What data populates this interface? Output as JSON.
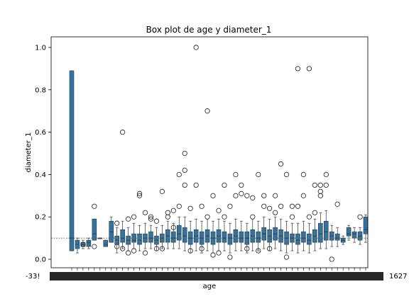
{
  "chart_data": {
    "type": "box",
    "title": "Box plot de age y diameter_1",
    "xlabel": "age",
    "ylabel": "diameter_1",
    "ylim": [
      -0.04,
      1.05
    ],
    "y_ticks": [
      "0.0",
      "0.2",
      "0.4",
      "0.6",
      "0.8",
      "1.0"
    ],
    "y_tick_values": [
      0.0,
      0.2,
      0.4,
      0.6,
      0.8,
      1.0
    ],
    "x_tick_label_first": "-33!",
    "x_tick_label_last": "1627",
    "grid": false,
    "box_color": "#3274a1",
    "reference_line_y": 0.1,
    "boxes": [
      {
        "q1": 0.04,
        "median": 0.1,
        "q3": 0.89,
        "low": 0.04,
        "high": 0.89,
        "outliers": []
      },
      {
        "q1": 0.05,
        "median": 0.07,
        "q3": 0.09,
        "low": 0.03,
        "high": 0.1,
        "outliers": []
      },
      {
        "q1": 0.06,
        "median": 0.07,
        "q3": 0.08,
        "low": 0.05,
        "high": 0.09,
        "outliers": [
          0.07
        ]
      },
      {
        "q1": 0.06,
        "median": 0.08,
        "q3": 0.09,
        "low": 0.05,
        "high": 0.1,
        "outliers": []
      },
      {
        "q1": 0.09,
        "median": 0.12,
        "q3": 0.19,
        "low": 0.09,
        "high": 0.19,
        "outliers": [
          0.25,
          0.06
        ]
      },
      {
        "q1": 0.1,
        "median": 0.1,
        "q3": 0.1,
        "low": 0.1,
        "high": 0.1,
        "outliers": []
      },
      {
        "q1": 0.06,
        "median": 0.07,
        "q3": 0.09,
        "low": 0.06,
        "high": 0.09,
        "outliers": []
      },
      {
        "q1": 0.08,
        "median": 0.13,
        "q3": 0.18,
        "low": 0.08,
        "high": 0.2,
        "outliers": []
      },
      {
        "q1": 0.07,
        "median": 0.09,
        "q3": 0.11,
        "low": 0.03,
        "high": 0.15,
        "outliers": [
          0.17,
          0.06
        ]
      },
      {
        "q1": 0.08,
        "median": 0.1,
        "q3": 0.14,
        "low": 0.05,
        "high": 0.18,
        "outliers": [
          0.6,
          0.05
        ]
      },
      {
        "q1": 0.07,
        "median": 0.09,
        "q3": 0.11,
        "low": 0.04,
        "high": 0.15,
        "outliers": [
          0.19,
          0.03
        ]
      },
      {
        "q1": 0.08,
        "median": 0.09,
        "q3": 0.12,
        "low": 0.05,
        "high": 0.17,
        "outliers": [
          0.2,
          0.04
        ]
      },
      {
        "q1": 0.07,
        "median": 0.09,
        "q3": 0.12,
        "low": 0.04,
        "high": 0.16,
        "outliers": [
          0.31,
          0.3
        ]
      },
      {
        "q1": 0.08,
        "median": 0.1,
        "q3": 0.12,
        "low": 0.05,
        "high": 0.17,
        "outliers": [
          0.22,
          0.03
        ]
      },
      {
        "q1": 0.08,
        "median": 0.1,
        "q3": 0.13,
        "low": 0.05,
        "high": 0.16,
        "outliers": [
          0.19,
          0.2
        ]
      },
      {
        "q1": 0.07,
        "median": 0.09,
        "q3": 0.11,
        "low": 0.04,
        "high": 0.15,
        "outliers": [
          0.18,
          0.05
        ]
      },
      {
        "q1": 0.08,
        "median": 0.1,
        "q3": 0.12,
        "low": 0.05,
        "high": 0.16,
        "outliers": [
          0.32,
          0.05
        ]
      },
      {
        "q1": 0.08,
        "median": 0.11,
        "q3": 0.14,
        "low": 0.05,
        "high": 0.18,
        "outliers": [
          0.22,
          0.2
        ]
      },
      {
        "q1": 0.08,
        "median": 0.1,
        "q3": 0.13,
        "low": 0.05,
        "high": 0.17,
        "outliers": [
          0.23,
          0.15
        ]
      },
      {
        "q1": 0.09,
        "median": 0.12,
        "q3": 0.16,
        "low": 0.05,
        "high": 0.2,
        "outliers": [
          0.4,
          0.25
        ]
      },
      {
        "q1": 0.08,
        "median": 0.11,
        "q3": 0.15,
        "low": 0.04,
        "high": 0.2,
        "outliers": [
          0.5,
          0.42,
          0.35
        ]
      },
      {
        "q1": 0.07,
        "median": 0.1,
        "q3": 0.13,
        "low": 0.03,
        "high": 0.18,
        "outliers": [
          0.24,
          0.04
        ]
      },
      {
        "q1": 0.08,
        "median": 0.11,
        "q3": 0.14,
        "low": 0.04,
        "high": 0.19,
        "outliers": [
          1.0,
          0.35
        ]
      },
      {
        "q1": 0.07,
        "median": 0.1,
        "q3": 0.13,
        "low": 0.03,
        "high": 0.18,
        "outliers": [
          0.25,
          0.05
        ]
      },
      {
        "q1": 0.08,
        "median": 0.11,
        "q3": 0.14,
        "low": 0.04,
        "high": 0.19,
        "outliers": [
          0.7,
          0.2
        ]
      },
      {
        "q1": 0.07,
        "median": 0.1,
        "q3": 0.13,
        "low": 0.03,
        "high": 0.18,
        "outliers": [
          0.3,
          0.02
        ]
      },
      {
        "q1": 0.08,
        "median": 0.11,
        "q3": 0.14,
        "low": 0.04,
        "high": 0.19,
        "outliers": [
          0.23,
          0.03
        ]
      },
      {
        "q1": 0.08,
        "median": 0.1,
        "q3": 0.13,
        "low": 0.04,
        "high": 0.18,
        "outliers": [
          0.35,
          0.2
        ]
      },
      {
        "q1": 0.07,
        "median": 0.1,
        "q3": 0.12,
        "low": 0.03,
        "high": 0.17,
        "outliers": [
          0.25,
          0.01
        ]
      },
      {
        "q1": 0.08,
        "median": 0.11,
        "q3": 0.14,
        "low": 0.04,
        "high": 0.19,
        "outliers": [
          0.4,
          0.3
        ]
      },
      {
        "q1": 0.08,
        "median": 0.1,
        "q3": 0.13,
        "low": 0.04,
        "high": 0.18,
        "outliers": [
          0.31,
          0.35
        ]
      },
      {
        "q1": 0.07,
        "median": 0.1,
        "q3": 0.13,
        "low": 0.03,
        "high": 0.17,
        "outliers": [
          0.3,
          0.05
        ]
      },
      {
        "q1": 0.08,
        "median": 0.11,
        "q3": 0.14,
        "low": 0.04,
        "high": 0.19,
        "outliers": [
          0.29,
          0.2
        ]
      },
      {
        "q1": 0.08,
        "median": 0.1,
        "q3": 0.13,
        "low": 0.04,
        "high": 0.18,
        "outliers": [
          0.4,
          0.04
        ]
      },
      {
        "q1": 0.09,
        "median": 0.12,
        "q3": 0.15,
        "low": 0.05,
        "high": 0.2,
        "outliers": [
          0.3,
          0.25
        ]
      },
      {
        "q1": 0.08,
        "median": 0.11,
        "q3": 0.14,
        "low": 0.04,
        "high": 0.19,
        "outliers": [
          0.24,
          0.05
        ]
      },
      {
        "q1": 0.09,
        "median": 0.12,
        "q3": 0.15,
        "low": 0.05,
        "high": 0.2,
        "outliers": [
          0.3,
          0.22
        ]
      },
      {
        "q1": 0.08,
        "median": 0.11,
        "q3": 0.14,
        "low": 0.04,
        "high": 0.19,
        "outliers": [
          0.45,
          0.25
        ]
      },
      {
        "q1": 0.07,
        "median": 0.1,
        "q3": 0.13,
        "low": 0.03,
        "high": 0.18,
        "outliers": [
          0.4,
          0.01
        ]
      },
      {
        "q1": 0.08,
        "median": 0.1,
        "q3": 0.12,
        "low": 0.04,
        "high": 0.17,
        "outliers": [
          0.25,
          0.2
        ]
      },
      {
        "q1": 0.07,
        "median": 0.09,
        "q3": 0.12,
        "low": 0.03,
        "high": 0.17,
        "outliers": [
          0.9,
          0.25
        ]
      },
      {
        "q1": 0.08,
        "median": 0.1,
        "q3": 0.13,
        "low": 0.04,
        "high": 0.18,
        "outliers": [
          0.4,
          0.3
        ]
      },
      {
        "q1": 0.07,
        "median": 0.09,
        "q3": 0.12,
        "low": 0.03,
        "high": 0.17,
        "outliers": [
          0.9,
          0.2
        ]
      },
      {
        "q1": 0.08,
        "median": 0.11,
        "q3": 0.14,
        "low": 0.04,
        "high": 0.19,
        "outliers": [
          0.35,
          0.22
        ]
      },
      {
        "q1": 0.08,
        "median": 0.12,
        "q3": 0.17,
        "low": 0.05,
        "high": 0.22,
        "outliers": [
          0.35,
          0.32,
          0.3
        ]
      },
      {
        "q1": 0.09,
        "median": 0.13,
        "q3": 0.18,
        "low": 0.05,
        "high": 0.23,
        "outliers": [
          0.4,
          0.35
        ]
      },
      {
        "q1": 0.09,
        "median": 0.11,
        "q3": 0.13,
        "low": 0.06,
        "high": 0.16,
        "outliers": [
          0.0
        ]
      },
      {
        "q1": 0.09,
        "median": 0.1,
        "q3": 0.12,
        "low": 0.06,
        "high": 0.15,
        "outliers": [
          0.26
        ]
      },
      {
        "q1": 0.08,
        "median": 0.09,
        "q3": 0.1,
        "low": 0.07,
        "high": 0.11,
        "outliers": []
      },
      {
        "q1": 0.11,
        "median": 0.12,
        "q3": 0.15,
        "low": 0.09,
        "high": 0.16,
        "outliers": []
      },
      {
        "q1": 0.1,
        "median": 0.12,
        "q3": 0.13,
        "low": 0.08,
        "high": 0.15,
        "outliers": []
      },
      {
        "q1": 0.09,
        "median": 0.11,
        "q3": 0.13,
        "low": 0.07,
        "high": 0.15,
        "outliers": [
          0.2
        ]
      },
      {
        "q1": 0.12,
        "median": 0.14,
        "q3": 0.2,
        "low": 0.08,
        "high": 0.21,
        "outliers": []
      }
    ]
  }
}
